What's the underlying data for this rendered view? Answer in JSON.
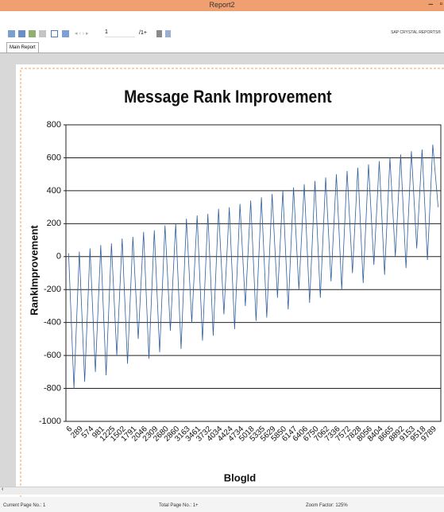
{
  "window": {
    "title": "Report2"
  },
  "toolbar": {
    "page_input": "1",
    "page_total": "/1+",
    "brand": "SAP CRYSTAL REPORTS®"
  },
  "tabs": [
    "Main Report"
  ],
  "status_bar": {
    "current_page": "Current Page No.: 1",
    "total_page": "Total Page No.: 1+",
    "zoom": "Zoom Factor: 125%"
  },
  "chart_data": {
    "type": "line",
    "title": "Message Rank Improvement",
    "x_label": "BlogId",
    "y_label": "RankImprovement",
    "categories": [
      "6",
      null,
      "289",
      null,
      "574",
      null,
      "981",
      null,
      "1225",
      null,
      "1502",
      null,
      "1791",
      null,
      "2046",
      null,
      "2309",
      null,
      "2680",
      null,
      "2860",
      null,
      "3163",
      null,
      "3461",
      null,
      "3732",
      null,
      "4034",
      null,
      "4424",
      null,
      "4734",
      null,
      "5018",
      null,
      "5335",
      null,
      "5629",
      null,
      "5850",
      null,
      "6147",
      null,
      "6406",
      null,
      "6750",
      null,
      "7062",
      null,
      "7336",
      null,
      "7572",
      null,
      "7828",
      null,
      "8056",
      null,
      "8404",
      null,
      "8665",
      null,
      "8892",
      null,
      "9153",
      null,
      "9518",
      null,
      "9789",
      null
    ],
    "values": [
      20,
      -800,
      30,
      -760,
      50,
      -700,
      70,
      -720,
      80,
      -600,
      110,
      -650,
      120,
      -500,
      150,
      -620,
      160,
      -580,
      190,
      -450,
      200,
      -560,
      230,
      -400,
      250,
      -510,
      260,
      -480,
      290,
      -350,
      300,
      -440,
      320,
      -300,
      340,
      -390,
      360,
      -370,
      380,
      -250,
      400,
      -320,
      420,
      -200,
      440,
      -280,
      460,
      -250,
      480,
      -150,
      500,
      -200,
      520,
      -100,
      540,
      -160,
      560,
      -50,
      580,
      -110,
      600,
      0,
      620,
      -70,
      640,
      50,
      650,
      -20,
      680,
      300
    ],
    "color": "#2f5f9e",
    "ylim": [
      -1000,
      800
    ],
    "yticks": [
      -1000,
      -800,
      -600,
      -400,
      -200,
      0,
      200,
      400,
      600,
      800
    ],
    "grid": true
  }
}
